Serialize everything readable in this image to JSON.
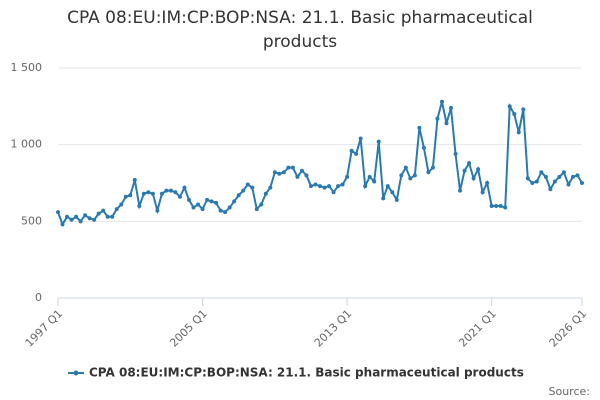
{
  "chart_data": {
    "type": "line",
    "title": "CPA 08:EU:IM:CP:BOP:NSA: 21.1. Basic pharmaceutical products",
    "source": "Source:",
    "categories": [
      "1997 Q1",
      null,
      null,
      null,
      null,
      null,
      null,
      null,
      null,
      null,
      null,
      null,
      null,
      null,
      null,
      null,
      null,
      null,
      null,
      null,
      null,
      null,
      null,
      null,
      null,
      null,
      null,
      null,
      null,
      null,
      null,
      null,
      "2005 Q1",
      null,
      null,
      null,
      null,
      null,
      null,
      null,
      null,
      null,
      null,
      null,
      null,
      null,
      null,
      null,
      null,
      null,
      null,
      null,
      null,
      null,
      null,
      null,
      null,
      null,
      null,
      null,
      null,
      null,
      null,
      null,
      "2013 Q1",
      null,
      null,
      null,
      null,
      null,
      null,
      null,
      null,
      null,
      null,
      null,
      null,
      null,
      null,
      null,
      null,
      null,
      null,
      null,
      null,
      null,
      null,
      null,
      null,
      null,
      null,
      null,
      null,
      null,
      null,
      null,
      "2021 Q1",
      null,
      null,
      null,
      null,
      null,
      null,
      null,
      null,
      null,
      null,
      null,
      null,
      null,
      null,
      null,
      null,
      null,
      null,
      null,
      "2026 Q1"
    ],
    "series": [
      {
        "name": "CPA 08:EU:IM:CP:BOP:NSA: 21.1. Basic pharmaceutical products",
        "color": "#2a7ab0",
        "values": [
          560,
          480,
          530,
          510,
          530,
          500,
          540,
          520,
          510,
          550,
          570,
          530,
          530,
          580,
          610,
          660,
          670,
          770,
          600,
          680,
          690,
          680,
          570,
          680,
          700,
          700,
          690,
          660,
          720,
          640,
          590,
          610,
          580,
          640,
          630,
          620,
          570,
          560,
          590,
          630,
          670,
          700,
          740,
          720,
          580,
          610,
          680,
          720,
          820,
          810,
          820,
          850,
          850,
          790,
          830,
          800,
          730,
          740,
          730,
          720,
          730,
          690,
          730,
          740,
          790,
          960,
          940,
          1040,
          730,
          790,
          760,
          1020,
          650,
          730,
          690,
          640,
          800,
          850,
          780,
          800,
          1110,
          980,
          820,
          850,
          1170,
          1280,
          1140,
          1240,
          940,
          700,
          830,
          880,
          780,
          840,
          690,
          750,
          600,
          600,
          600,
          590,
          1250,
          1200,
          1080,
          1230,
          780,
          750,
          760,
          820,
          790,
          710,
          760,
          790,
          820,
          740,
          790,
          800,
          750
        ]
      }
    ],
    "ylim": [
      0,
      1500
    ],
    "yticks": [
      0,
      500,
      {
        "value": 1000,
        "label": "1 000"
      },
      {
        "value": 1500,
        "label": "1 500"
      }
    ],
    "grid": true
  }
}
